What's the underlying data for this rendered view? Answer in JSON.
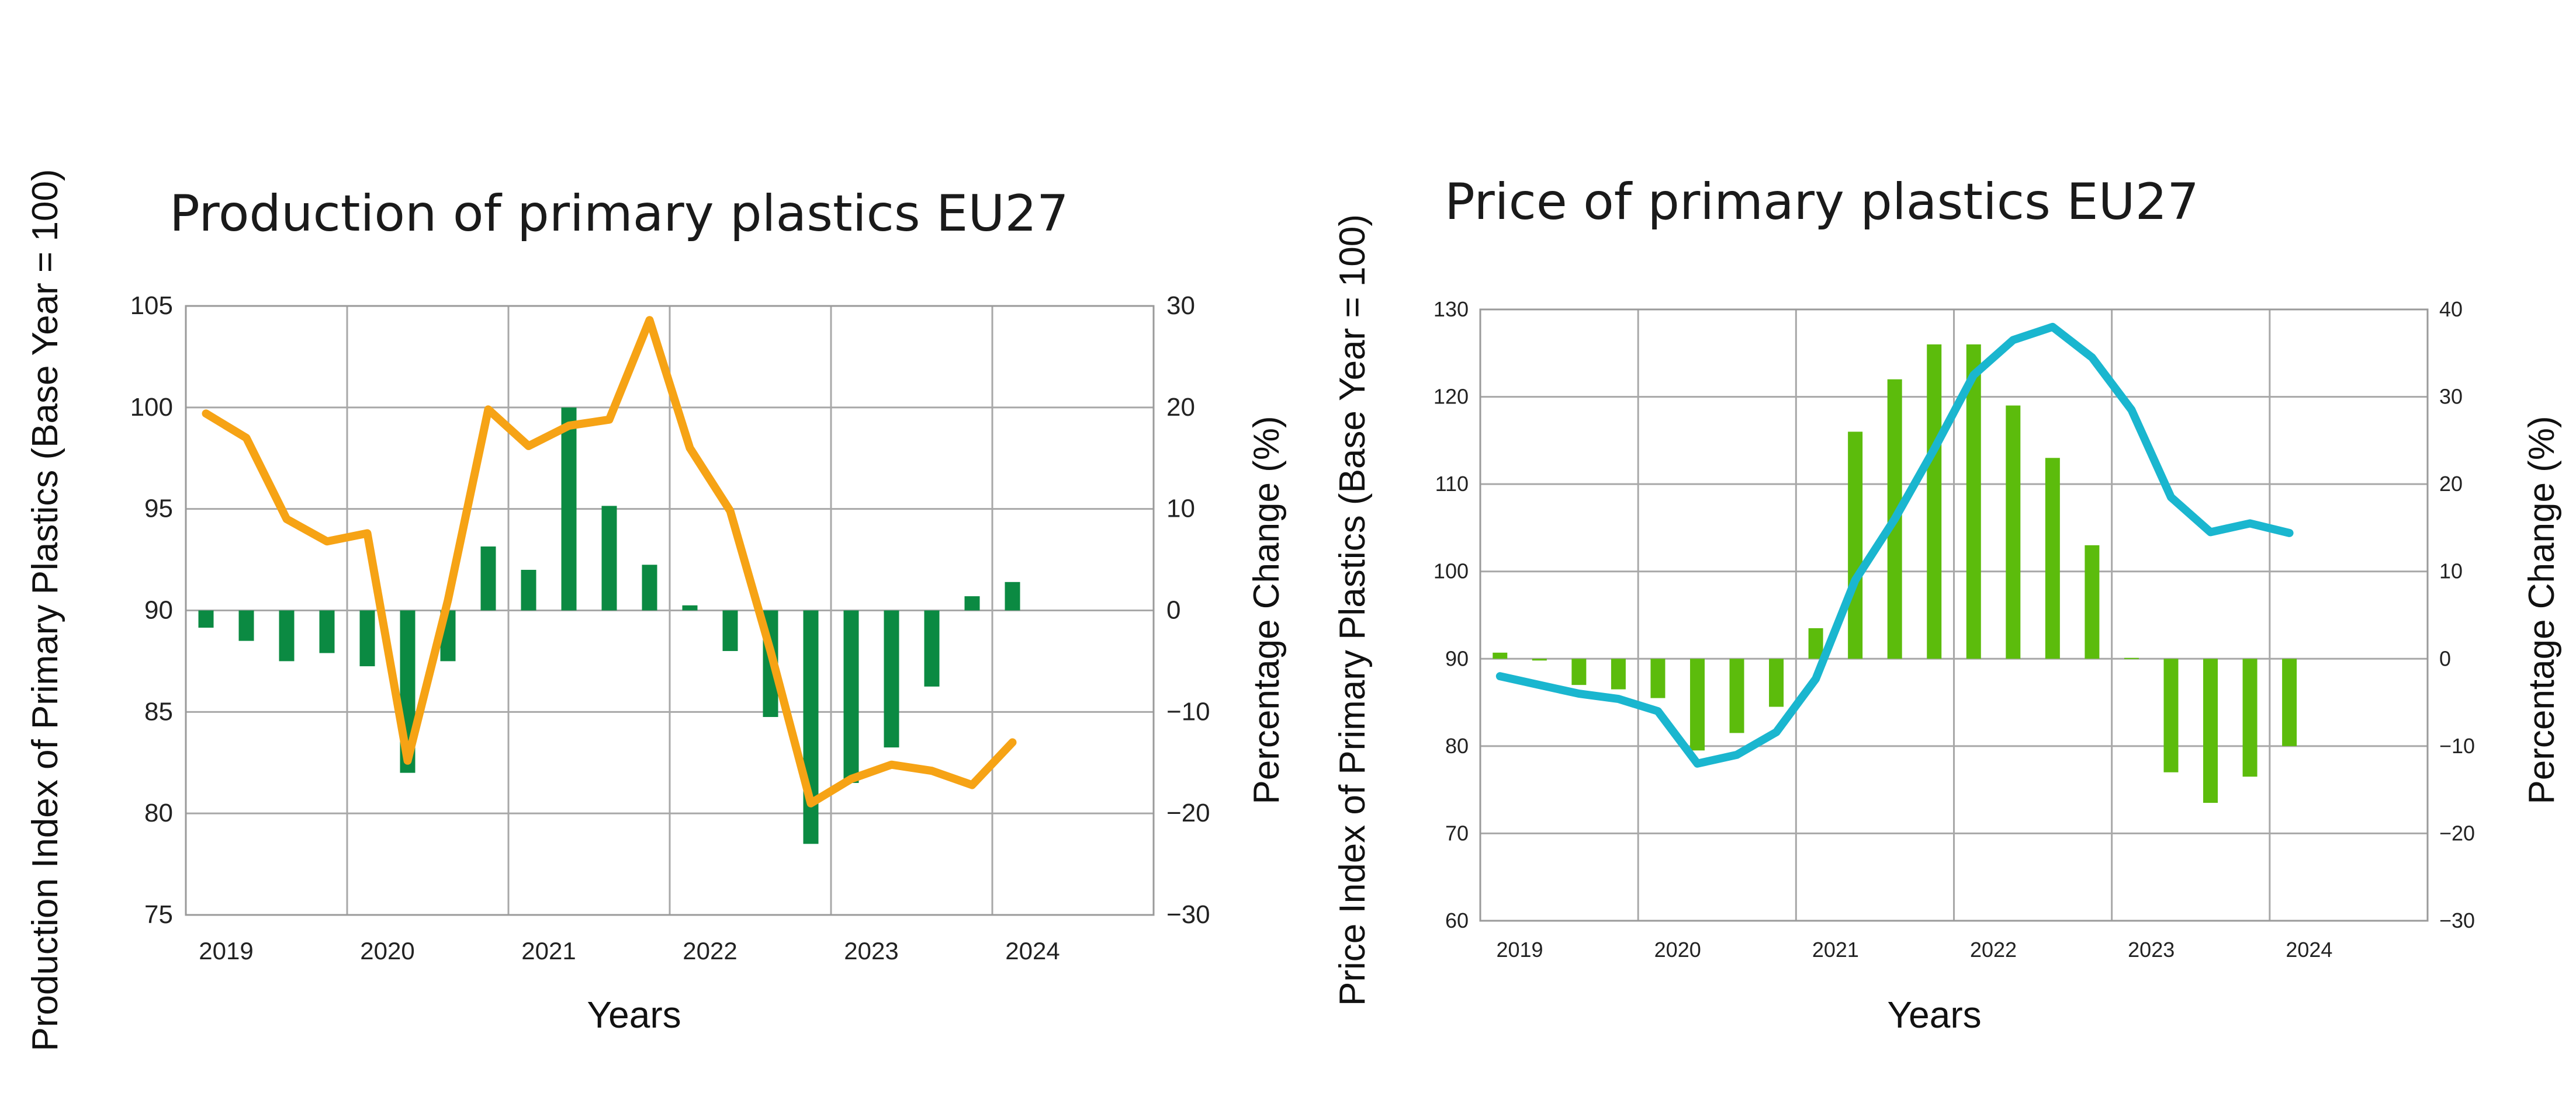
{
  "chart_data": [
    {
      "type": "bar+line",
      "title": "Production of primary plastics EU27",
      "ylabel": "Production Index of Primary Plastics (Base Year = 100)",
      "y2label": "Percentage Change (%)",
      "xlabel": "Years",
      "ylim": [
        75,
        105
      ],
      "y_ticks": [
        75,
        80,
        85,
        90,
        95,
        100,
        105
      ],
      "y2lim": [
        -30,
        30
      ],
      "y2_ticks": [
        -30,
        -20,
        -10,
        0,
        10,
        20,
        30
      ],
      "year_labels": [
        "2019",
        "2020",
        "2021",
        "2022",
        "2023",
        "2024"
      ],
      "year_start": 2019,
      "quarters": 24,
      "grid": true,
      "series": [
        {
          "name": "Percentage change",
          "kind": "bar",
          "axis": "right",
          "color": "#0b8a42",
          "values": [
            -1.7,
            -3.0,
            -5.0,
            -4.2,
            -5.5,
            -16.0,
            -5.0,
            6.3,
            4.0,
            20.0,
            10.3,
            4.5,
            0.5,
            -4.0,
            -10.5,
            -23.0,
            -17.0,
            -13.5,
            -7.5,
            1.4,
            2.8
          ]
        },
        {
          "name": "Production index",
          "kind": "line",
          "axis": "left",
          "color": "#f6a315",
          "values": [
            99.7,
            98.5,
            94.5,
            93.4,
            93.8,
            82.6,
            90.5,
            99.9,
            98.1,
            99.1,
            99.4,
            104.3,
            98.0,
            94.9,
            88.0,
            80.5,
            81.7,
            82.4,
            82.1,
            81.4,
            83.5
          ]
        }
      ]
    },
    {
      "type": "bar+line",
      "title": "Price of primary plastics EU27",
      "ylabel": "Price Index of Primary Plastics (Base Year = 100)",
      "y2label": "Percentage Change (%)",
      "xlabel": "Years",
      "ylim": [
        60,
        130
      ],
      "y_ticks": [
        60,
        70,
        80,
        90,
        100,
        110,
        120,
        130
      ],
      "y2lim": [
        -30,
        40
      ],
      "y2_ticks": [
        -30,
        -20,
        -10,
        0,
        10,
        20,
        30,
        40
      ],
      "year_labels": [
        "2019",
        "2020",
        "2021",
        "2022",
        "2023",
        "2024"
      ],
      "year_start": 2019,
      "quarters": 24,
      "grid": true,
      "series": [
        {
          "name": "Percentage change",
          "kind": "bar",
          "axis": "right",
          "color": "#5cbc0c",
          "values": [
            0.7,
            -0.2,
            -3.0,
            -3.5,
            -4.5,
            -10.5,
            -8.5,
            -5.5,
            3.5,
            26.0,
            32.0,
            36.0,
            36.0,
            29.0,
            23.0,
            13.0,
            0.1,
            -13.0,
            -16.5,
            -13.5,
            -10.0
          ]
        },
        {
          "name": "Price index",
          "kind": "line",
          "axis": "left",
          "color": "#1ab6cf",
          "values": [
            88.0,
            87.0,
            86.0,
            85.4,
            84.0,
            78.0,
            79.0,
            81.6,
            87.7,
            99.0,
            106.0,
            114.0,
            122.5,
            126.5,
            128.0,
            124.5,
            118.5,
            108.5,
            104.5,
            105.5,
            104.4
          ]
        }
      ]
    }
  ]
}
